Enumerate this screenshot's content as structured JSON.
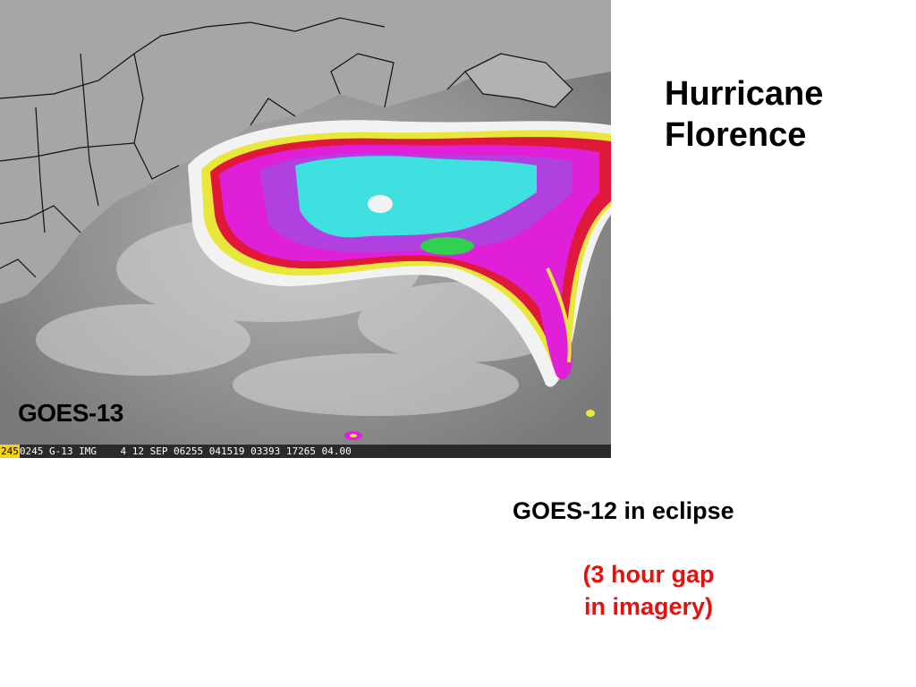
{
  "title": {
    "line1": "Hurricane",
    "line2": "Florence"
  },
  "image": {
    "satellite_label": "GOES-13",
    "info_bar": {
      "prefix": "245",
      "text": "0245 G-13 IMG    4 12 SEP 06255 041519 03393 17265 04.00"
    },
    "colors": {
      "ocean_gray": "#8c8c8c",
      "land_gray": "#a8a8a8",
      "cloud_white": "#f2f2f2",
      "band_yellow": "#e8e83a",
      "band_red": "#e0183a",
      "band_magenta": "#e020d8",
      "band_purple": "#b040e0",
      "core_cyan": "#3ee0e0",
      "core_green": "#30d050"
    }
  },
  "notes": {
    "eclipse": "GOES-12 in eclipse",
    "gap_line1": "(3 hour gap",
    "gap_line2": "in imagery)"
  }
}
